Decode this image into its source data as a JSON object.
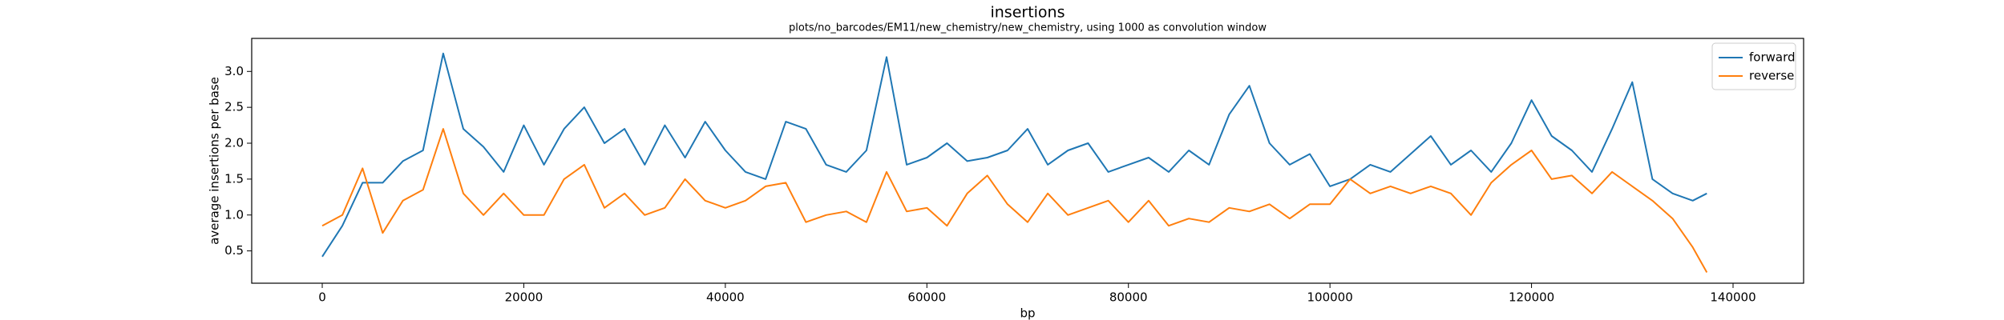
{
  "chart_data": {
    "type": "line",
    "title": "insertions",
    "subtitle": "plots/no_barcodes/EM11/new_chemistry/new_chemistry, using 1000 as convolution window",
    "x_label": "bp",
    "y_label": "average insertions per base",
    "x": [
      0,
      2000,
      4000,
      6000,
      8000,
      10000,
      12000,
      14000,
      16000,
      18000,
      20000,
      22000,
      24000,
      26000,
      28000,
      30000,
      32000,
      34000,
      36000,
      38000,
      40000,
      42000,
      44000,
      46000,
      48000,
      50000,
      52000,
      54000,
      56000,
      58000,
      60000,
      62000,
      64000,
      66000,
      68000,
      70000,
      72000,
      74000,
      76000,
      78000,
      80000,
      82000,
      84000,
      86000,
      88000,
      90000,
      92000,
      94000,
      96000,
      98000,
      100000,
      102000,
      104000,
      106000,
      108000,
      110000,
      112000,
      114000,
      116000,
      118000,
      120000,
      122000,
      124000,
      126000,
      128000,
      130000,
      132000,
      134000,
      136000,
      137400
    ],
    "series": [
      {
        "name": "forward",
        "color": "#1f77b4",
        "values": [
          0.42,
          0.85,
          1.45,
          1.45,
          1.75,
          1.9,
          3.25,
          2.2,
          1.95,
          1.6,
          2.25,
          1.7,
          2.2,
          2.5,
          2.0,
          2.2,
          1.7,
          2.25,
          1.8,
          2.3,
          1.9,
          1.6,
          1.5,
          2.3,
          2.2,
          1.7,
          1.6,
          1.9,
          3.2,
          1.7,
          1.8,
          2.0,
          1.75,
          1.8,
          1.9,
          2.2,
          1.7,
          1.9,
          2.0,
          1.6,
          1.7,
          1.8,
          1.6,
          1.9,
          1.7,
          2.4,
          2.8,
          2.0,
          1.7,
          1.85,
          1.4,
          1.5,
          1.7,
          1.6,
          1.85,
          2.1,
          1.7,
          1.9,
          1.6,
          2.0,
          2.6,
          2.1,
          1.9,
          1.6,
          2.2,
          2.85,
          1.5,
          1.3,
          1.2,
          1.3
        ]
      },
      {
        "name": "reverse",
        "color": "#ff7f0e",
        "values": [
          0.85,
          1.0,
          1.65,
          0.75,
          1.2,
          1.35,
          2.2,
          1.3,
          1.0,
          1.3,
          1.0,
          1.0,
          1.5,
          1.7,
          1.1,
          1.3,
          1.0,
          1.1,
          1.5,
          1.2,
          1.1,
          1.2,
          1.4,
          1.45,
          0.9,
          1.0,
          1.05,
          0.9,
          1.6,
          1.05,
          1.1,
          0.85,
          1.3,
          1.55,
          1.15,
          0.9,
          1.3,
          1.0,
          1.1,
          1.2,
          0.9,
          1.2,
          0.85,
          0.95,
          0.9,
          1.1,
          1.05,
          1.15,
          0.95,
          1.15,
          1.15,
          1.5,
          1.3,
          1.4,
          1.3,
          1.4,
          1.3,
          1.0,
          1.45,
          1.7,
          1.9,
          1.5,
          1.55,
          1.3,
          1.6,
          1.4,
          1.2,
          0.95,
          0.55,
          0.2
        ]
      }
    ],
    "xlim": [
      -7000,
      147000
    ],
    "ylim": [
      0.05,
      3.46
    ],
    "xticks": [
      0,
      20000,
      40000,
      60000,
      80000,
      100000,
      120000,
      140000
    ],
    "yticks": [
      0.5,
      {
        "value": 1,
        "label": "1.0"
      },
      1.5,
      {
        "value": 2,
        "label": "2.0"
      },
      2.5,
      {
        "value": 3,
        "label": "3.0"
      }
    ],
    "legend": "upper right"
  }
}
